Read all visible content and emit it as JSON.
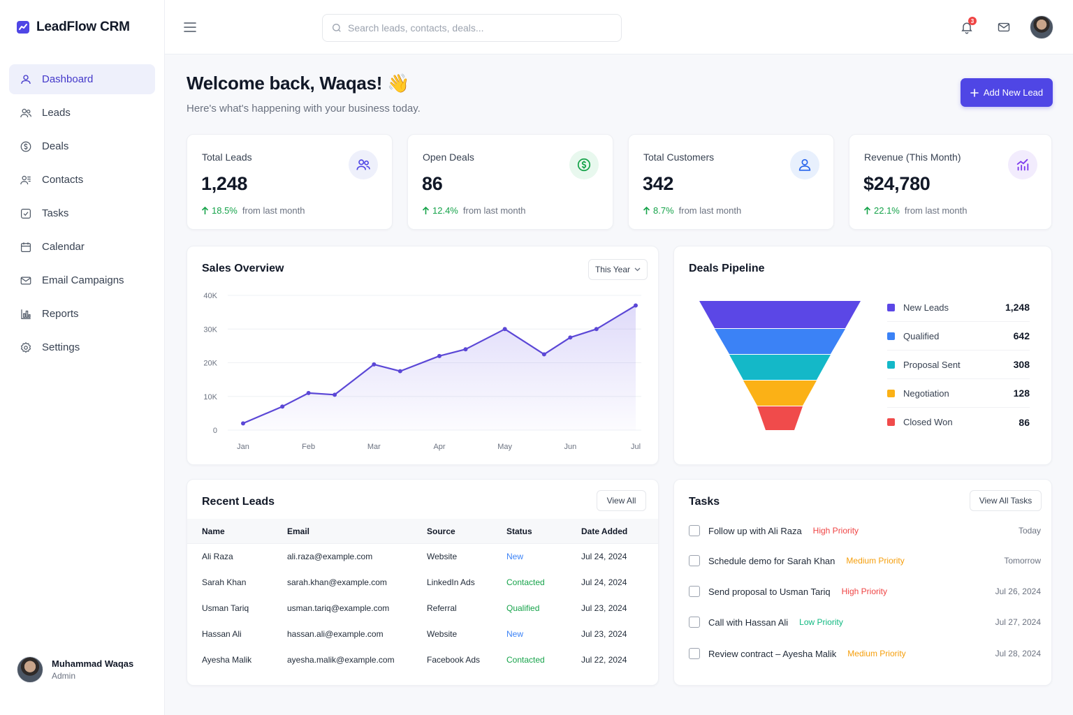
{
  "app": {
    "name": "LeadFlow CRM"
  },
  "sidebar": {
    "items": [
      {
        "label": "Dashboard",
        "icon": "dashboard-icon",
        "active": true
      },
      {
        "label": "Leads",
        "icon": "users-icon"
      },
      {
        "label": "Deals",
        "icon": "dollar-circle-icon"
      },
      {
        "label": "Contacts",
        "icon": "contacts-icon"
      },
      {
        "label": "Tasks",
        "icon": "checkbox-icon"
      },
      {
        "label": "Calendar",
        "icon": "calendar-icon"
      },
      {
        "label": "Email Campaigns",
        "icon": "mail-icon"
      },
      {
        "label": "Reports",
        "icon": "bar-chart-icon"
      },
      {
        "label": "Settings",
        "icon": "gear-icon"
      }
    ],
    "user": {
      "name": "Muhammad Waqas",
      "role": "Admin"
    }
  },
  "topbar": {
    "search_placeholder": "Search leads, contacts, deals...",
    "notification_count": "3"
  },
  "header": {
    "title": "Welcome back, Waqas! 👋",
    "subtitle": "Here's what's happening with your business today.",
    "add_button": "Add New Lead"
  },
  "stats": [
    {
      "label": "Total Leads",
      "value": "1,248",
      "change": "18.5%",
      "suffix": "from last month",
      "icon": "users-icon",
      "icon_color": "#4f46e5",
      "icon_bg": "#eef0fb"
    },
    {
      "label": "Open Deals",
      "value": "86",
      "change": "12.4%",
      "suffix": "from last month",
      "icon": "dollar-circle-icon",
      "icon_color": "#16a34a",
      "icon_bg": "#e8f8ee"
    },
    {
      "label": "Total Customers",
      "value": "342",
      "change": "8.7%",
      "suffix": "from last month",
      "icon": "user-icon",
      "icon_color": "#2563eb",
      "icon_bg": "#e8f0fd"
    },
    {
      "label": "Revenue (This Month)",
      "value": "$24,780",
      "change": "22.1%",
      "suffix": "from last month",
      "icon": "chart-up-icon",
      "icon_color": "#7c3aed",
      "icon_bg": "#f2ecfd"
    }
  ],
  "sales": {
    "title": "Sales Overview",
    "range": "This Year"
  },
  "chart_data": {
    "type": "area",
    "categories": [
      "Jan",
      "Feb",
      "Mar",
      "Apr",
      "May",
      "Jun",
      "Jul"
    ],
    "x": [
      0,
      0.6,
      1.0,
      1.4,
      2.0,
      2.4,
      3.0,
      3.4,
      4.0,
      4.6,
      5.0,
      5.4,
      6.0
    ],
    "values": [
      2000,
      7000,
      11000,
      10500,
      19500,
      17500,
      22000,
      24000,
      30000,
      22500,
      27500,
      30000,
      37000
    ],
    "yticks": [
      0,
      10000,
      20000,
      30000,
      40000
    ],
    "ytick_labels": [
      "0",
      "10K",
      "20K",
      "30K",
      "40K"
    ],
    "ylim": [
      0,
      40000
    ],
    "grid": true,
    "color": "#5b47d6"
  },
  "pipeline": {
    "title": "Deals Pipeline",
    "stages": [
      {
        "label": "New Leads",
        "value": "1,248",
        "color": "#5b47e6"
      },
      {
        "label": "Qualified",
        "value": "642",
        "color": "#3b82f6"
      },
      {
        "label": "Proposal Sent",
        "value": "308",
        "color": "#14b8c8"
      },
      {
        "label": "Negotiation",
        "value": "128",
        "color": "#fbb116"
      },
      {
        "label": "Closed Won",
        "value": "86",
        "color": "#f04b4b"
      }
    ]
  },
  "recent_leads": {
    "title": "Recent Leads",
    "view_all": "View All",
    "columns": [
      "Name",
      "Email",
      "Source",
      "Status",
      "Date Added"
    ],
    "rows": [
      {
        "name": "Ali Raza",
        "email": "ali.raza@example.com",
        "source": "Website",
        "status": "New",
        "status_class": "new",
        "date": "Jul 24, 2024"
      },
      {
        "name": "Sarah Khan",
        "email": "sarah.khan@example.com",
        "source": "LinkedIn Ads",
        "status": "Contacted",
        "status_class": "contacted",
        "date": "Jul 24, 2024"
      },
      {
        "name": "Usman Tariq",
        "email": "usman.tariq@example.com",
        "source": "Referral",
        "status": "Qualified",
        "status_class": "qualified",
        "date": "Jul 23, 2024"
      },
      {
        "name": "Hassan Ali",
        "email": "hassan.ali@example.com",
        "source": "Website",
        "status": "New",
        "status_class": "new",
        "date": "Jul 23, 2024"
      },
      {
        "name": "Ayesha Malik",
        "email": "ayesha.malik@example.com",
        "source": "Facebook Ads",
        "status": "Contacted",
        "status_class": "contacted",
        "date": "Jul 22, 2024"
      }
    ]
  },
  "tasks": {
    "title": "Tasks",
    "view_all": "View All Tasks",
    "items": [
      {
        "title": "Follow up with Ali Raza",
        "priority": "High Priority",
        "level": "high",
        "date": "Today"
      },
      {
        "title": "Schedule demo for Sarah Khan",
        "priority": "Medium Priority",
        "level": "medium",
        "date": "Tomorrow"
      },
      {
        "title": "Send proposal to Usman Tariq",
        "priority": "High Priority",
        "level": "high",
        "date": "Jul 26, 2024"
      },
      {
        "title": "Call with Hassan Ali",
        "priority": "Low Priority",
        "level": "low",
        "date": "Jul 27, 2024"
      },
      {
        "title": "Review contract – Ayesha Malik",
        "priority": "Medium Priority",
        "level": "medium",
        "date": "Jul 28, 2024"
      }
    ]
  }
}
